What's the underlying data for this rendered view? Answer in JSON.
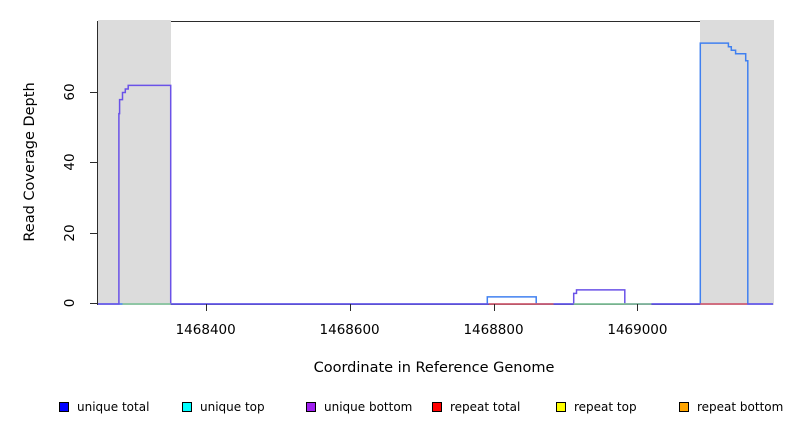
{
  "figure": {
    "type_note": "read coverage depth plot"
  },
  "chart_data": {
    "type": "line",
    "title": "",
    "xlabel": "Coordinate in Reference Genome",
    "ylabel": "Read Coverage Depth",
    "xlim": [
      1468249,
      1469187
    ],
    "ylim": [
      0,
      80
    ],
    "x_ticks": [
      1468400,
      1468600,
      1468800,
      1469000
    ],
    "y_ticks": [
      0,
      20,
      40,
      60
    ],
    "grid": false,
    "legend_position": "bottom",
    "shaded_regions": [
      {
        "name": "repeat-region-left",
        "x1": 1468249,
        "x2": 1468351,
        "color": "#dcdcdc"
      },
      {
        "name": "repeat-region-right",
        "x1": 1469086,
        "x2": 1469188,
        "color": "#dcdcdc"
      }
    ],
    "series": [
      {
        "name": "unique total",
        "color": "#4080f0",
        "points": [
          [
            1468249,
            0
          ],
          [
            1468790,
            0
          ],
          [
            1468790,
            2
          ],
          [
            1468858,
            2
          ],
          [
            1468858,
            0
          ],
          [
            1469086,
            0
          ],
          [
            1469086,
            74
          ],
          [
            1469125,
            74
          ],
          [
            1469125,
            73
          ],
          [
            1469129,
            73
          ],
          [
            1469129,
            72
          ],
          [
            1469135,
            72
          ],
          [
            1469135,
            71
          ],
          [
            1469149,
            71
          ],
          [
            1469149,
            69
          ],
          [
            1469152,
            69
          ],
          [
            1469152,
            0
          ],
          [
            1469187,
            0
          ]
        ]
      },
      {
        "name": "unique bottom",
        "color": "#6a52e8",
        "points": [
          [
            1468249,
            0
          ],
          [
            1468278,
            0
          ],
          [
            1468278,
            54
          ],
          [
            1468279,
            54
          ],
          [
            1468279,
            58
          ],
          [
            1468283,
            58
          ],
          [
            1468283,
            60
          ],
          [
            1468287,
            60
          ],
          [
            1468287,
            61
          ],
          [
            1468291,
            61
          ],
          [
            1468291,
            62
          ],
          [
            1468350,
            62
          ],
          [
            1468350,
            0
          ],
          [
            1468910,
            0
          ],
          [
            1468910,
            3
          ],
          [
            1468914,
            3
          ],
          [
            1468914,
            4
          ],
          [
            1468981,
            4
          ],
          [
            1468981,
            0
          ],
          [
            1469187,
            0
          ]
        ]
      }
    ],
    "baseline_segments": [
      {
        "name": "green-baseline-left",
        "color": "#8fce8f",
        "y": 0,
        "x1": 1468283,
        "x2": 1468350
      },
      {
        "name": "red-baseline-bump",
        "color": "#e06060",
        "y": 0,
        "x1": 1468792,
        "x2": 1468882
      },
      {
        "name": "green-baseline-middle",
        "color": "#8fce8f",
        "y": 0,
        "x1": 1468910,
        "x2": 1469018
      },
      {
        "name": "red-baseline-right",
        "color": "#e06060",
        "y": 0,
        "x1": 1469086,
        "x2": 1469151
      }
    ],
    "legend": [
      {
        "label": "unique total",
        "color": "#0000ff"
      },
      {
        "label": "unique top",
        "color": "#00ffff"
      },
      {
        "label": "unique bottom",
        "color": "#a020f0"
      },
      {
        "label": "repeat total",
        "color": "#ff0000"
      },
      {
        "label": "repeat top",
        "color": "#ffff00"
      },
      {
        "label": "repeat bottom",
        "color": "#ffa500"
      }
    ]
  }
}
